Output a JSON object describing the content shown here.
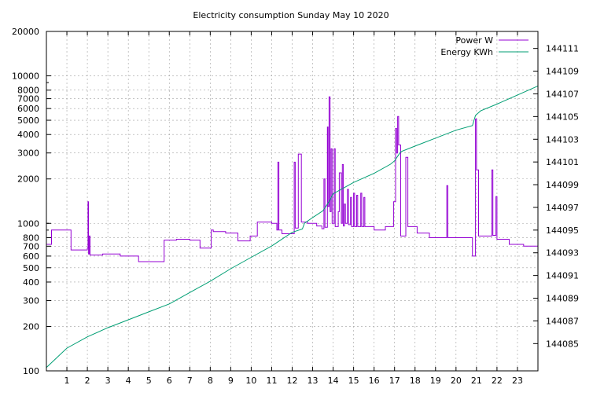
{
  "chart_data": {
    "type": "line",
    "title": "Electricity consumption Sunday May 10 2020",
    "x": {
      "range": [
        0,
        24
      ],
      "ticks": [
        1,
        2,
        3,
        4,
        5,
        6,
        7,
        8,
        9,
        10,
        11,
        12,
        13,
        14,
        15,
        16,
        17,
        18,
        19,
        20,
        21,
        22,
        23
      ],
      "tick_labels": [
        "1",
        "2",
        "3",
        "4",
        "5",
        "6",
        "7",
        "8",
        "9",
        "10",
        "11",
        "12",
        "13",
        "14",
        "15",
        "16",
        "17",
        "18",
        "19",
        "20",
        "21",
        "22",
        "23"
      ]
    },
    "y_left": {
      "scale": "log",
      "range": [
        100,
        20000
      ],
      "ticks": [
        100,
        200,
        300,
        400,
        500,
        600,
        700,
        800,
        1000,
        2000,
        3000,
        4000,
        5000,
        6000,
        7000,
        8000,
        10000,
        20000
      ],
      "tick_labels": [
        "100",
        "200",
        "300",
        "400",
        "500",
        "600",
        "700",
        "800",
        "1000",
        "2000",
        "3000",
        "4000",
        "5000",
        "6000",
        "7000",
        "8000",
        "10000",
        "20000"
      ]
    },
    "y_right": {
      "scale": "linear",
      "range": [
        144082.6,
        144112.5
      ],
      "ticks": [
        144085,
        144087,
        144089,
        144091,
        144093,
        144095,
        144097,
        144099,
        144101,
        144103,
        144105,
        144107,
        144109,
        144111
      ],
      "tick_labels": [
        "144085",
        "144087",
        "144089",
        "144091",
        "144093",
        "144095",
        "144097",
        "144099",
        "144101",
        "144103",
        "144105",
        "144107",
        "144109",
        "144111"
      ]
    },
    "grid": true,
    "legend_position": "top-right",
    "series": [
      {
        "name": "Power W",
        "color": "#9400d3",
        "axis": "left",
        "step": true,
        "points": [
          [
            0,
            720
          ],
          [
            0.25,
            900
          ],
          [
            1.2,
            660
          ],
          [
            2,
            680
          ],
          [
            2.03,
            1400
          ],
          [
            2.06,
            620
          ],
          [
            2.1,
            820
          ],
          [
            2.13,
            610
          ],
          [
            2.75,
            620
          ],
          [
            3.6,
            600
          ],
          [
            4.5,
            550
          ],
          [
            5.75,
            770
          ],
          [
            6.35,
            780
          ],
          [
            7,
            770
          ],
          [
            7.5,
            680
          ],
          [
            8.05,
            900
          ],
          [
            8.15,
            880
          ],
          [
            8.75,
            860
          ],
          [
            9.35,
            760
          ],
          [
            9.95,
            820
          ],
          [
            10.3,
            1020
          ],
          [
            11,
            1000
          ],
          [
            11.25,
            900
          ],
          [
            11.3,
            2600
          ],
          [
            11.35,
            900
          ],
          [
            11.5,
            850
          ],
          [
            12,
            850
          ],
          [
            12.1,
            2600
          ],
          [
            12.15,
            930
          ],
          [
            12.3,
            2950
          ],
          [
            12.45,
            1020
          ],
          [
            12.75,
            1000
          ],
          [
            13.2,
            960
          ],
          [
            13.45,
            920
          ],
          [
            13.55,
            2000
          ],
          [
            13.6,
            940
          ],
          [
            13.72,
            4500
          ],
          [
            13.75,
            1300
          ],
          [
            13.8,
            7200
          ],
          [
            13.85,
            1200
          ],
          [
            13.9,
            3200
          ],
          [
            13.95,
            1000
          ],
          [
            14.05,
            3200
          ],
          [
            14.1,
            950
          ],
          [
            14.25,
            1200
          ],
          [
            14.3,
            2200
          ],
          [
            14.4,
            1000
          ],
          [
            14.45,
            2500
          ],
          [
            14.5,
            960
          ],
          [
            14.55,
            1350
          ],
          [
            14.6,
            1000
          ],
          [
            14.7,
            1700
          ],
          [
            14.75,
            980
          ],
          [
            14.85,
            1500
          ],
          [
            14.9,
            950
          ],
          [
            15,
            1600
          ],
          [
            15.05,
            950
          ],
          [
            15.15,
            1550
          ],
          [
            15.2,
            950
          ],
          [
            15.35,
            1600
          ],
          [
            15.4,
            950
          ],
          [
            15.5,
            1500
          ],
          [
            15.55,
            950
          ],
          [
            16,
            900
          ],
          [
            16.55,
            950
          ],
          [
            16.95,
            1400
          ],
          [
            17.05,
            4400
          ],
          [
            17.1,
            3000
          ],
          [
            17.15,
            5300
          ],
          [
            17.2,
            3400
          ],
          [
            17.3,
            820
          ],
          [
            17.55,
            2800
          ],
          [
            17.65,
            950
          ],
          [
            18.1,
            860
          ],
          [
            18.7,
            800
          ],
          [
            19.5,
            800
          ],
          [
            19.55,
            1800
          ],
          [
            19.6,
            800
          ],
          [
            20,
            800
          ],
          [
            20.8,
            600
          ],
          [
            20.95,
            5100
          ],
          [
            21,
            2300
          ],
          [
            21.1,
            820
          ],
          [
            21.75,
            2300
          ],
          [
            21.8,
            830
          ],
          [
            21.95,
            1520
          ],
          [
            22,
            780
          ],
          [
            22.6,
            720
          ],
          [
            23.3,
            700
          ],
          [
            24,
            720
          ]
        ]
      },
      {
        "name": "Energy KWh",
        "color": "#009e73",
        "axis": "right",
        "step": false,
        "points": [
          [
            0,
            144082.9
          ],
          [
            1,
            144084.6
          ],
          [
            2,
            144085.6
          ],
          [
            3,
            144086.4
          ],
          [
            4,
            144087.1
          ],
          [
            5,
            144087.8
          ],
          [
            6,
            144088.5
          ],
          [
            7,
            144089.5
          ],
          [
            8,
            144090.5
          ],
          [
            9,
            144091.6
          ],
          [
            10,
            144092.6
          ],
          [
            11,
            144093.6
          ],
          [
            12,
            144094.8
          ],
          [
            12.5,
            144095.1
          ],
          [
            12.6,
            144095.6
          ],
          [
            13,
            144096.1
          ],
          [
            13.5,
            144096.7
          ],
          [
            13.8,
            144097.5
          ],
          [
            14,
            144098.2
          ],
          [
            14.5,
            144098.7
          ],
          [
            15,
            144099.2
          ],
          [
            16,
            144100.0
          ],
          [
            16.8,
            144100.8
          ],
          [
            17,
            144101.1
          ],
          [
            17.3,
            144101.9
          ],
          [
            18,
            144102.4
          ],
          [
            19,
            144103.1
          ],
          [
            20,
            144103.8
          ],
          [
            20.8,
            144104.2
          ],
          [
            20.95,
            144105.1
          ],
          [
            21.2,
            144105.5
          ],
          [
            22,
            144106.1
          ],
          [
            23,
            144106.9
          ],
          [
            24,
            144107.7
          ]
        ]
      }
    ]
  }
}
